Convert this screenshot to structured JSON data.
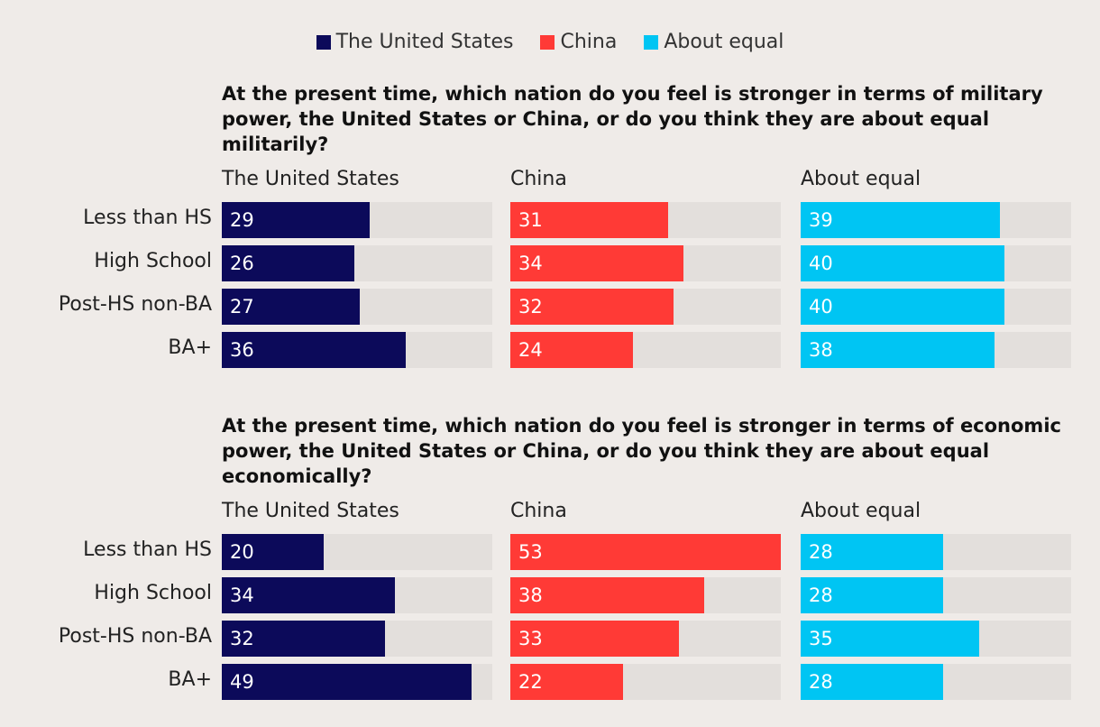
{
  "legend": [
    {
      "label": "The United States",
      "color": "#0c0a5a"
    },
    {
      "label": "China",
      "color": "#ff3a36"
    },
    {
      "label": "About equal",
      "color": "#00c5f3"
    }
  ],
  "chart_data": [
    {
      "type": "bar",
      "title": "At the present time, which nation do you feel is stronger in terms of military power, the United States or China, or do you think they are about equal militarily?",
      "categories": [
        "Less than HS",
        "High School",
        "Post-HS non-BA",
        "BA+"
      ],
      "xlim": [
        0,
        53
      ],
      "series": [
        {
          "name": "The United States",
          "color": "#0c0a5a",
          "values": [
            29,
            26,
            27,
            36
          ]
        },
        {
          "name": "China",
          "color": "#ff3a36",
          "values": [
            31,
            34,
            32,
            24
          ]
        },
        {
          "name": "About equal",
          "color": "#00c5f3",
          "values": [
            39,
            40,
            40,
            38
          ]
        }
      ]
    },
    {
      "type": "bar",
      "title": "At the present time, which nation do you feel is stronger in terms of economic power, the United States or China, or do you think they are about equal economically?",
      "categories": [
        "Less than HS",
        "High School",
        "Post-HS non-BA",
        "BA+"
      ],
      "xlim": [
        0,
        53
      ],
      "series": [
        {
          "name": "The United States",
          "color": "#0c0a5a",
          "values": [
            20,
            34,
            32,
            49
          ]
        },
        {
          "name": "China",
          "color": "#ff3a36",
          "values": [
            53,
            38,
            33,
            22
          ]
        },
        {
          "name": "About equal",
          "color": "#00c5f3",
          "values": [
            28,
            28,
            35,
            28
          ]
        }
      ]
    }
  ]
}
